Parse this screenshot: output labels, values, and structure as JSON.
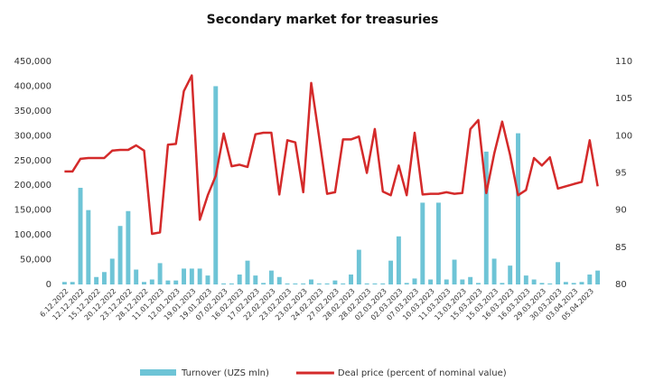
{
  "chart_data": {
    "type": "bar_line",
    "title": "Secondary market for treasuries",
    "categories": [
      "6.12.2022",
      null,
      "12.12.2022",
      null,
      "15.12.2022",
      null,
      "20.12.2022",
      null,
      "23.12.2022",
      null,
      "28.12.2022",
      null,
      "11.01.2023",
      null,
      "12.01.2023",
      null,
      "19.01.2023",
      null,
      "19.01.2023",
      null,
      "07.02.2023",
      null,
      "16.02.2023",
      null,
      "17.02.2023",
      null,
      "22.02.2023",
      null,
      "23.02.2023",
      null,
      "23.02.2023",
      null,
      "24.02.2023",
      null,
      "27.02.2023",
      null,
      "28.02.2023",
      null,
      "28.02.2023",
      null,
      "02.03.2023",
      null,
      "02.03.2023",
      null,
      "07.03.2023",
      null,
      "10.03.2023",
      null,
      "11.03.2023",
      null,
      "13.03.2023",
      null,
      "15.03.2023",
      null,
      "15.03.2023",
      null,
      "16.03.2023",
      null,
      "16.03.2023",
      null,
      "29.03.2023",
      null,
      "30.03.2023",
      null,
      "03.04.2023",
      null,
      "05.04.2023",
      null
    ],
    "series": [
      {
        "name": "Turnover (UZS mln)",
        "type": "bar",
        "color": "#6ec4d6",
        "values": [
          5000,
          5000,
          195000,
          150000,
          15000,
          25000,
          52000,
          118000,
          148000,
          30000,
          5000,
          10000,
          43000,
          8000,
          8000,
          32000,
          32000,
          32000,
          18000,
          400000,
          2000,
          2000,
          20000,
          48000,
          18000,
          3000,
          28000,
          15000,
          2000,
          2000,
          2000,
          10000,
          2000,
          2000,
          8000,
          2000,
          20000,
          70000,
          2000,
          2000,
          2000,
          48000,
          97000,
          3000,
          12000,
          165000,
          10000,
          165000,
          10000,
          50000,
          10000,
          15000,
          3000,
          268000,
          52000,
          3000,
          38000,
          305000,
          18000,
          10000,
          3000,
          2000,
          45000,
          5000,
          3000,
          5000,
          20000,
          28000
        ]
      },
      {
        "name": "Deal price (percent of nominal value)",
        "type": "line",
        "axis": "y2",
        "color": "#d42a2a",
        "values": [
          95.2,
          95.2,
          96.9,
          97,
          97,
          97,
          98,
          98.1,
          98.1,
          98.7,
          98,
          86.8,
          87,
          98.8,
          98.9,
          106,
          108.1,
          88.7,
          92,
          94.6,
          100.3,
          95.9,
          96.1,
          95.8,
          100.2,
          100.4,
          100.4,
          92.1,
          99.4,
          99.1,
          92.4,
          107.1,
          99.8,
          92.2,
          92.4,
          99.5,
          99.5,
          99.9,
          95,
          100.9,
          92.5,
          92,
          96,
          92,
          100.4,
          92.1,
          92.2,
          92.2,
          92.4,
          92.2,
          92.3,
          100.9,
          102.1,
          92.3,
          97.6,
          101.9,
          97.4,
          92,
          92.7,
          97,
          96,
          97.1,
          92.9,
          93.2,
          93.5,
          93.8,
          99.4,
          93.2
        ]
      }
    ],
    "ylim": [
      0,
      450000
    ],
    "yticks": [
      0,
      {
        "value": 50000,
        "label": "50,000"
      },
      {
        "value": 100000,
        "label": "100,000"
      },
      {
        "value": 150000,
        "label": "150,000"
      },
      {
        "value": 200000,
        "label": "200,000"
      },
      {
        "value": 250000,
        "label": "250,000"
      },
      {
        "value": 300000,
        "label": "300,000"
      },
      {
        "value": 350000,
        "label": "350,000"
      },
      {
        "value": 400000,
        "label": "400,000"
      },
      {
        "value": 450000,
        "label": "450,000"
      }
    ],
    "y2lim": [
      80,
      110
    ],
    "y2ticks": [
      80,
      85,
      90,
      95,
      100,
      105,
      110
    ],
    "grid": false,
    "legend": "bottom"
  }
}
